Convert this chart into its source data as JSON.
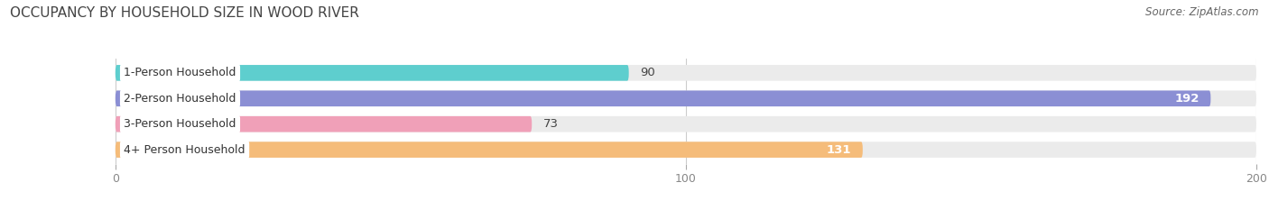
{
  "title": "OCCUPANCY BY HOUSEHOLD SIZE IN WOOD RIVER",
  "source": "Source: ZipAtlas.com",
  "categories": [
    "1-Person Household",
    "2-Person Household",
    "3-Person Household",
    "4+ Person Household"
  ],
  "values": [
    90,
    192,
    73,
    131
  ],
  "bar_colors": [
    "#5ecece",
    "#8b8fd4",
    "#f0a0b8",
    "#f5bc7a"
  ],
  "bg_colors": [
    "#ebebeb",
    "#ebebeb",
    "#ebebeb",
    "#ebebeb"
  ],
  "value_inside": [
    false,
    true,
    false,
    true
  ],
  "xlim_min": -18,
  "xlim_max": 200,
  "xticks": [
    0,
    100,
    200
  ],
  "title_fontsize": 11,
  "bar_label_fontsize": 9.5,
  "category_fontsize": 9,
  "source_fontsize": 8.5,
  "bar_height": 0.62,
  "title_color": "#444444",
  "source_color": "#666666",
  "tick_color": "#888888",
  "value_dark_color": "#444444",
  "value_light_color": "#ffffff",
  "bg_figure": "#ffffff"
}
